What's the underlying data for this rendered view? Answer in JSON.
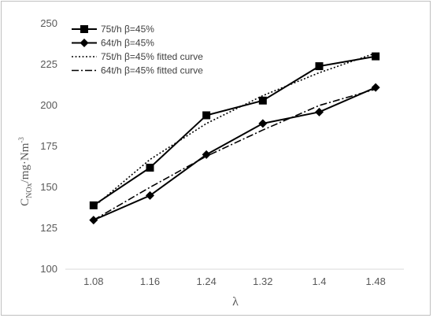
{
  "chart_data": {
    "type": "line",
    "title": "",
    "xlabel": "λ",
    "ylabel": {
      "base": "C",
      "subscript": "NOx",
      "rest": "/mg·Nm",
      "superscript": "-3"
    },
    "categories": [
      "1.08",
      "1.16",
      "1.24",
      "1.32",
      "1.4",
      "1.48"
    ],
    "ylim": [
      100,
      250
    ],
    "yticks": [
      100,
      125,
      150,
      175,
      200,
      225,
      250
    ],
    "grid": false,
    "legend_position": "top-left",
    "series": [
      {
        "name": "75t/h β=45%",
        "values": [
          139,
          162,
          194,
          203,
          224,
          230
        ],
        "style": "solid",
        "marker": "square",
        "color": "#000000"
      },
      {
        "name": "64t/h β=45%",
        "values": [
          130,
          145,
          170,
          189,
          196,
          211
        ],
        "style": "solid",
        "marker": "diamond",
        "color": "#000000"
      },
      {
        "name": "75t/h β=45% fitted curve",
        "values": [
          138,
          167,
          189,
          206,
          220,
          232
        ],
        "style": "dotted",
        "marker": "none",
        "color": "#000000"
      },
      {
        "name": "64t/h β=45% fitted curve",
        "values": [
          130,
          150,
          169,
          185,
          200,
          210
        ],
        "style": "dashdot",
        "marker": "none",
        "color": "#000000"
      }
    ]
  }
}
